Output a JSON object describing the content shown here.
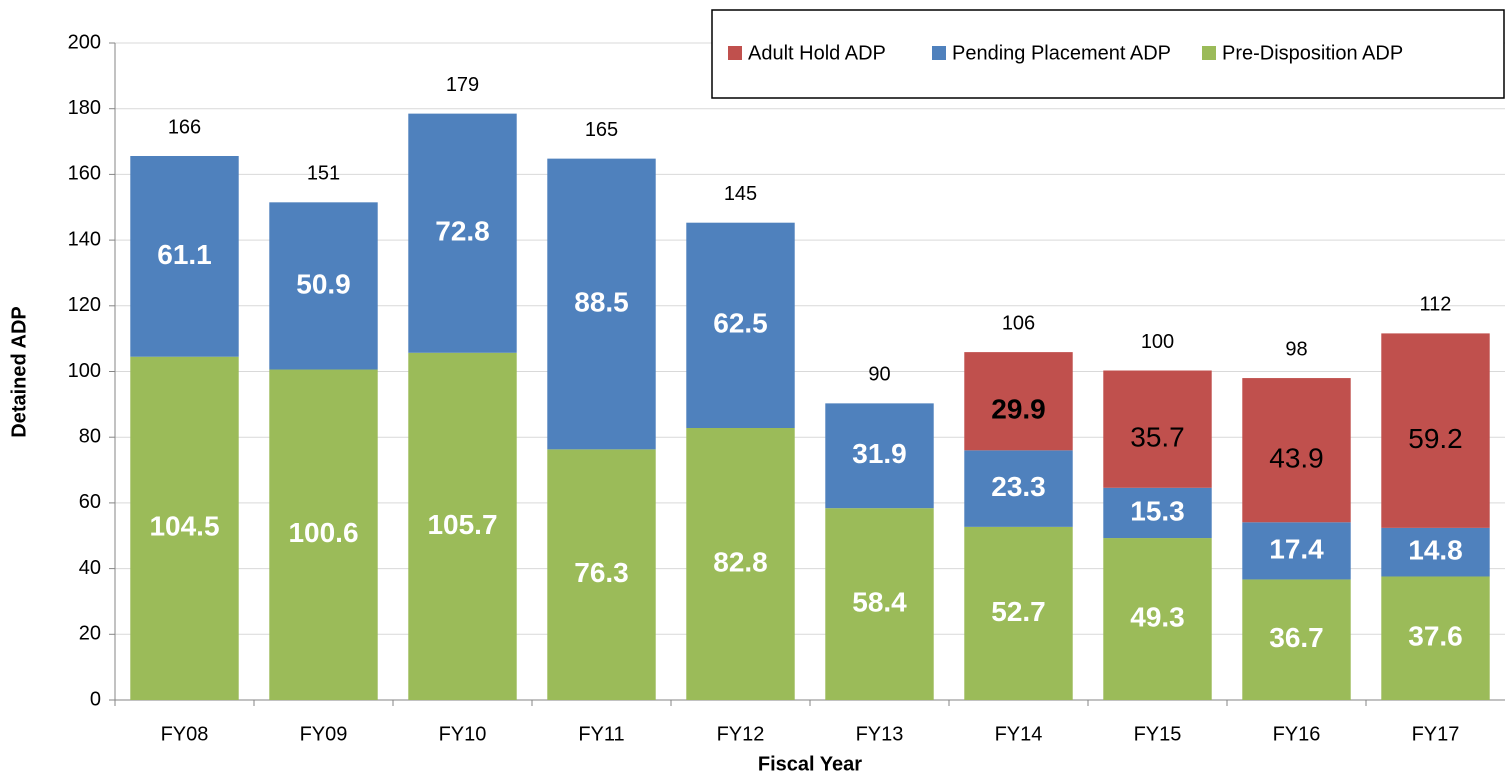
{
  "chart_data": {
    "type": "stacked_bar",
    "categories": [
      "FY08",
      "FY09",
      "FY10",
      "FY11",
      "FY12",
      "FY13",
      "FY14",
      "FY15",
      "FY16",
      "FY17"
    ],
    "series": [
      {
        "name": "Adult Hold ADP",
        "color": "#c0504d",
        "values": [
          null,
          null,
          null,
          null,
          null,
          null,
          29.9,
          35.7,
          43.9,
          59.2
        ]
      },
      {
        "name": "Pending Placement ADP",
        "color": "#4f81bd",
        "values": [
          61.1,
          50.9,
          72.8,
          88.5,
          62.5,
          31.9,
          23.3,
          15.3,
          17.4,
          14.8
        ]
      },
      {
        "name": "Pre-Disposition ADP",
        "color": "#9bbb59",
        "values": [
          104.5,
          100.6,
          105.7,
          76.3,
          82.8,
          58.4,
          52.7,
          49.3,
          36.7,
          37.6
        ]
      }
    ],
    "totals": [
      166,
      151,
      179,
      165,
      145,
      90,
      106,
      100,
      98,
      112
    ],
    "xlabel": "Fiscal Year",
    "ylabel": "Detained ADP",
    "ylim": [
      0,
      200
    ],
    "yticks": [
      0,
      20,
      40,
      60,
      80,
      100,
      120,
      140,
      160,
      180,
      200
    ],
    "grid": true,
    "legend": "top-right"
  }
}
